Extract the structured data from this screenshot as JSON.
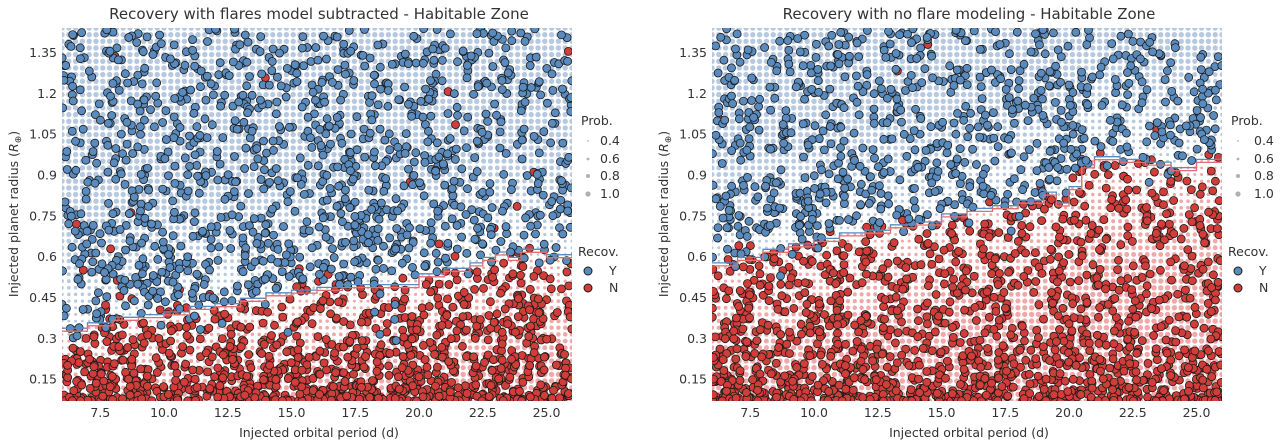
{
  "colors": {
    "recovered": "#5a8bbf",
    "not_recovered": "#d13e3a",
    "bg_recovered": "#b7c9e0",
    "bg_not_recovered": "#f0a8a8",
    "contour_red": "#e07070",
    "contour_blue": "#5a8bbf"
  },
  "chart_data": [
    {
      "type": "scatter",
      "title": "Recovery with flares model subtracted - Habitable Zone",
      "xlabel": "Injected orbital period (d)",
      "ylabel": "Injected planet radius ($R_\\oplus$)",
      "xlim": [
        6,
        26
      ],
      "ylim": [
        0.07,
        1.44
      ],
      "xticks": [
        "7.5",
        "10.0",
        "12.5",
        "15.0",
        "17.5",
        "20.0",
        "22.5",
        "25.0"
      ],
      "yticks": [
        "0.15",
        "0.3",
        "0.45",
        "0.6",
        "0.75",
        "0.9",
        "1.05",
        "1.2",
        "1.35"
      ],
      "grid": false,
      "legend_placement": "right",
      "size_legend": {
        "title": "Prob.",
        "labels": [
          "0.4",
          "0.6",
          "0.8",
          "1.0"
        ]
      },
      "color_legend": {
        "title": "Recov.",
        "labels": [
          "Y",
          "N"
        ]
      },
      "boundary": {
        "x": [
          6,
          7,
          8,
          9,
          10,
          11,
          12,
          13,
          14,
          15,
          16,
          17,
          18,
          19,
          20,
          21,
          22,
          22.5,
          23,
          23.5,
          24,
          25,
          26
        ],
        "y": [
          0.33,
          0.35,
          0.37,
          0.38,
          0.39,
          0.41,
          0.42,
          0.44,
          0.46,
          0.47,
          0.48,
          0.49,
          0.49,
          0.49,
          0.53,
          0.55,
          0.57,
          0.59,
          0.61,
          0.59,
          0.62,
          0.6,
          0.61
        ]
      }
    },
    {
      "type": "scatter",
      "title": "Recovery with no flare modeling - Habitable Zone",
      "xlabel": "Injected orbital period (d)",
      "ylabel": "Injected planet radius ($R_\\oplus$)",
      "xlim": [
        6,
        26
      ],
      "ylim": [
        0.07,
        1.44
      ],
      "xticks": [
        "7.5",
        "10.0",
        "12.5",
        "15.0",
        "17.5",
        "20.0",
        "22.5",
        "25.0"
      ],
      "yticks": [
        "0.15",
        "0.3",
        "0.45",
        "0.6",
        "0.75",
        "0.9",
        "1.05",
        "1.2",
        "1.35"
      ],
      "grid": false,
      "legend_placement": "right",
      "size_legend": {
        "title": "Prob.",
        "labels": [
          "0.4",
          "0.6",
          "0.8",
          "1.0"
        ]
      },
      "color_legend": {
        "title": "Recov.",
        "labels": [
          "Y",
          "N"
        ]
      },
      "boundary": {
        "x": [
          6,
          7,
          8,
          9,
          10,
          11,
          12,
          13,
          14,
          15,
          16,
          17,
          18,
          19,
          19.5,
          20,
          20.5,
          21,
          22,
          23,
          24,
          25,
          26
        ],
        "y": [
          0.57,
          0.59,
          0.62,
          0.64,
          0.66,
          0.68,
          0.69,
          0.71,
          0.72,
          0.75,
          0.77,
          0.78,
          0.8,
          0.83,
          0.79,
          0.85,
          0.93,
          0.96,
          0.95,
          0.94,
          0.92,
          0.95,
          0.97
        ]
      }
    }
  ]
}
